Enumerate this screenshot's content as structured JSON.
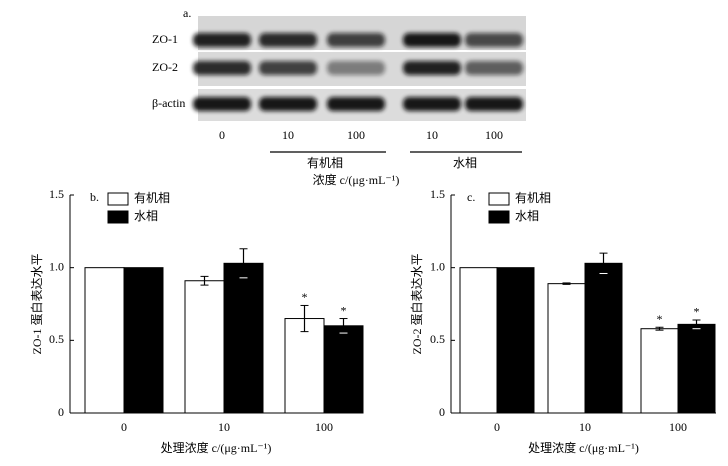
{
  "blot": {
    "panel_label": "a.",
    "rows": [
      "ZO-1",
      "ZO-2",
      "β-actin"
    ],
    "lanes": [
      "0",
      "10",
      "100",
      "10",
      "100"
    ],
    "groups": [
      "有机相",
      "水相"
    ],
    "axis_label": "浓度 c/(μg·mL⁻¹)"
  },
  "chart_data": [
    {
      "type": "bar",
      "panel_label": "b.",
      "y_label": "ZO-1 蛋白表达水平",
      "x_label": "处理浓度 c/(μg·mL⁻¹)",
      "categories": [
        "0",
        "10",
        "100"
      ],
      "series": [
        {
          "name": "有机相",
          "color": "#ffffff",
          "values": [
            1.0,
            0.91,
            0.65
          ],
          "errors": [
            0,
            0.03,
            0.09
          ],
          "significance": [
            null,
            null,
            "*"
          ]
        },
        {
          "name": "水相",
          "color": "#000000",
          "values": [
            1.0,
            1.03,
            0.6
          ],
          "errors": [
            0,
            0.1,
            0.05
          ],
          "significance": [
            null,
            null,
            "*"
          ]
        }
      ],
      "ylim": [
        0,
        1.5
      ],
      "yticks": [
        0,
        0.5,
        {
          "value": 1,
          "label": "1.0"
        },
        1.5
      ],
      "legend": "upper left",
      "grid": false
    },
    {
      "type": "bar",
      "panel_label": "c.",
      "y_label": "ZO-2 蛋白表达水平",
      "x_label": "处理浓度 c/(μg·mL⁻¹)",
      "categories": [
        "0",
        "10",
        "100"
      ],
      "series": [
        {
          "name": "有机相",
          "color": "#ffffff",
          "values": [
            1.0,
            0.89,
            0.58
          ],
          "errors": [
            0,
            0.005,
            0.01
          ],
          "significance": [
            null,
            null,
            "*"
          ]
        },
        {
          "name": "水相",
          "color": "#000000",
          "values": [
            1.0,
            1.03,
            0.61
          ],
          "errors": [
            0,
            0.07,
            0.03
          ],
          "significance": [
            null,
            null,
            "*"
          ]
        }
      ],
      "ylim": [
        0,
        1.5
      ],
      "yticks": [
        0,
        0.5,
        {
          "value": 1,
          "label": "1.0"
        },
        1.5
      ],
      "legend": "upper left",
      "grid": false
    }
  ]
}
